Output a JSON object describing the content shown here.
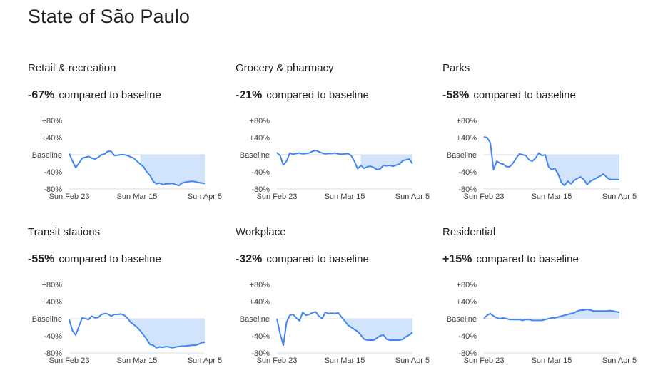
{
  "page": {
    "title": "State of São Paulo"
  },
  "axis": {
    "y_ticks": [
      "+80%",
      "+40%",
      "Baseline",
      "-40%",
      "-80%"
    ],
    "y_values": [
      80,
      40,
      0,
      -40,
      -80
    ],
    "x_ticks": [
      "Sun Feb 23",
      "Sun Mar 15",
      "Sun Apr 5"
    ],
    "x_tick_days": [
      0,
      21,
      42
    ]
  },
  "colors": {
    "line": "#4285f4",
    "fill": "#d2e3fc",
    "grid": "#dadce0",
    "text": "#202124",
    "tick": "#3c4043"
  },
  "chart_data": [
    {
      "type": "line",
      "title": "Retail & recreation",
      "percent": "-67%",
      "suffix": "compared to baseline",
      "x_unit": "days since Sun Feb 23",
      "ylim": [
        -80,
        80
      ],
      "baseline": 0,
      "shade_from_day": 22,
      "values": [
        3,
        -15,
        -30,
        -20,
        -8,
        -6,
        -4,
        -8,
        -10,
        -6,
        0,
        2,
        8,
        8,
        -2,
        -1,
        0,
        0,
        -2,
        -5,
        -8,
        -15,
        -22,
        -28,
        -40,
        -48,
        -62,
        -68,
        -66,
        -70,
        -68,
        -68,
        -67,
        -70,
        -72,
        -66,
        -64,
        -63,
        -62,
        -63,
        -65,
        -66,
        -67
      ]
    },
    {
      "type": "line",
      "title": "Grocery & pharmacy",
      "percent": "-21%",
      "suffix": "compared to baseline",
      "x_unit": "days since Sun Feb 23",
      "ylim": [
        -80,
        80
      ],
      "baseline": 0,
      "shade_from_day": 26,
      "values": [
        5,
        -2,
        -24,
        -15,
        4,
        1,
        3,
        4,
        2,
        3,
        4,
        8,
        10,
        7,
        4,
        2,
        3,
        3,
        4,
        2,
        1,
        2,
        3,
        -2,
        -15,
        -33,
        -25,
        -32,
        -28,
        -27,
        -30,
        -35,
        -33,
        -25,
        -26,
        -25,
        -27,
        -24,
        -22,
        -14,
        -12,
        -10,
        -21
      ]
    },
    {
      "type": "line",
      "title": "Parks",
      "percent": "-58%",
      "suffix": "compared to baseline",
      "x_unit": "days since Sun Feb 23",
      "ylim": [
        -80,
        80
      ],
      "baseline": 0,
      "shade_from_day": 18,
      "values": [
        42,
        40,
        28,
        -35,
        -15,
        -20,
        -22,
        -28,
        -28,
        -20,
        -8,
        2,
        0,
        -2,
        -12,
        -15,
        -8,
        4,
        -2,
        0,
        -28,
        -35,
        -32,
        -45,
        -65,
        -72,
        -62,
        -68,
        -60,
        -55,
        -52,
        -58,
        -70,
        -62,
        -58,
        -54,
        -50,
        -45,
        -52,
        -58,
        -58,
        -58,
        -58
      ]
    },
    {
      "type": "line",
      "title": "Transit stations",
      "percent": "-55%",
      "suffix": "compared to baseline",
      "x_unit": "days since Sun Feb 23",
      "ylim": [
        -80,
        80
      ],
      "baseline": 0,
      "shade_from_day": 18,
      "values": [
        -2,
        -28,
        -38,
        -18,
        2,
        0,
        -2,
        6,
        2,
        3,
        10,
        12,
        11,
        6,
        10,
        10,
        11,
        8,
        2,
        -8,
        -14,
        -20,
        -28,
        -38,
        -48,
        -60,
        -62,
        -68,
        -66,
        -67,
        -65,
        -66,
        -68,
        -66,
        -65,
        -64,
        -64,
        -63,
        -62,
        -62,
        -60,
        -56,
        -55
      ]
    },
    {
      "type": "line",
      "title": "Workplace",
      "percent": "-32%",
      "suffix": "compared to baseline",
      "x_unit": "days since Sun Feb 23",
      "ylim": [
        -80,
        80
      ],
      "baseline": 0,
      "shade_from_day": 20,
      "values": [
        0,
        -35,
        -62,
        -8,
        8,
        10,
        2,
        -5,
        15,
        8,
        10,
        14,
        16,
        6,
        0,
        15,
        12,
        13,
        12,
        14,
        4,
        -5,
        -15,
        -20,
        -25,
        -30,
        -38,
        -48,
        -50,
        -50,
        -50,
        -45,
        -40,
        -38,
        -48,
        -50,
        -50,
        -50,
        -50,
        -48,
        -42,
        -38,
        -32
      ]
    },
    {
      "type": "line",
      "title": "Residential",
      "percent": "+15%",
      "suffix": "compared to baseline",
      "x_unit": "days since Sun Feb 23",
      "ylim": [
        -80,
        80
      ],
      "baseline": 0,
      "shade_from_day": 20,
      "values": [
        0,
        8,
        12,
        6,
        2,
        0,
        2,
        0,
        -2,
        -2,
        -2,
        -2,
        -4,
        -2,
        -2,
        -4,
        -4,
        -4,
        -4,
        -2,
        0,
        2,
        2,
        4,
        6,
        8,
        10,
        12,
        14,
        18,
        20,
        20,
        22,
        20,
        18,
        18,
        18,
        18,
        18,
        19,
        18,
        16,
        15
      ]
    }
  ]
}
